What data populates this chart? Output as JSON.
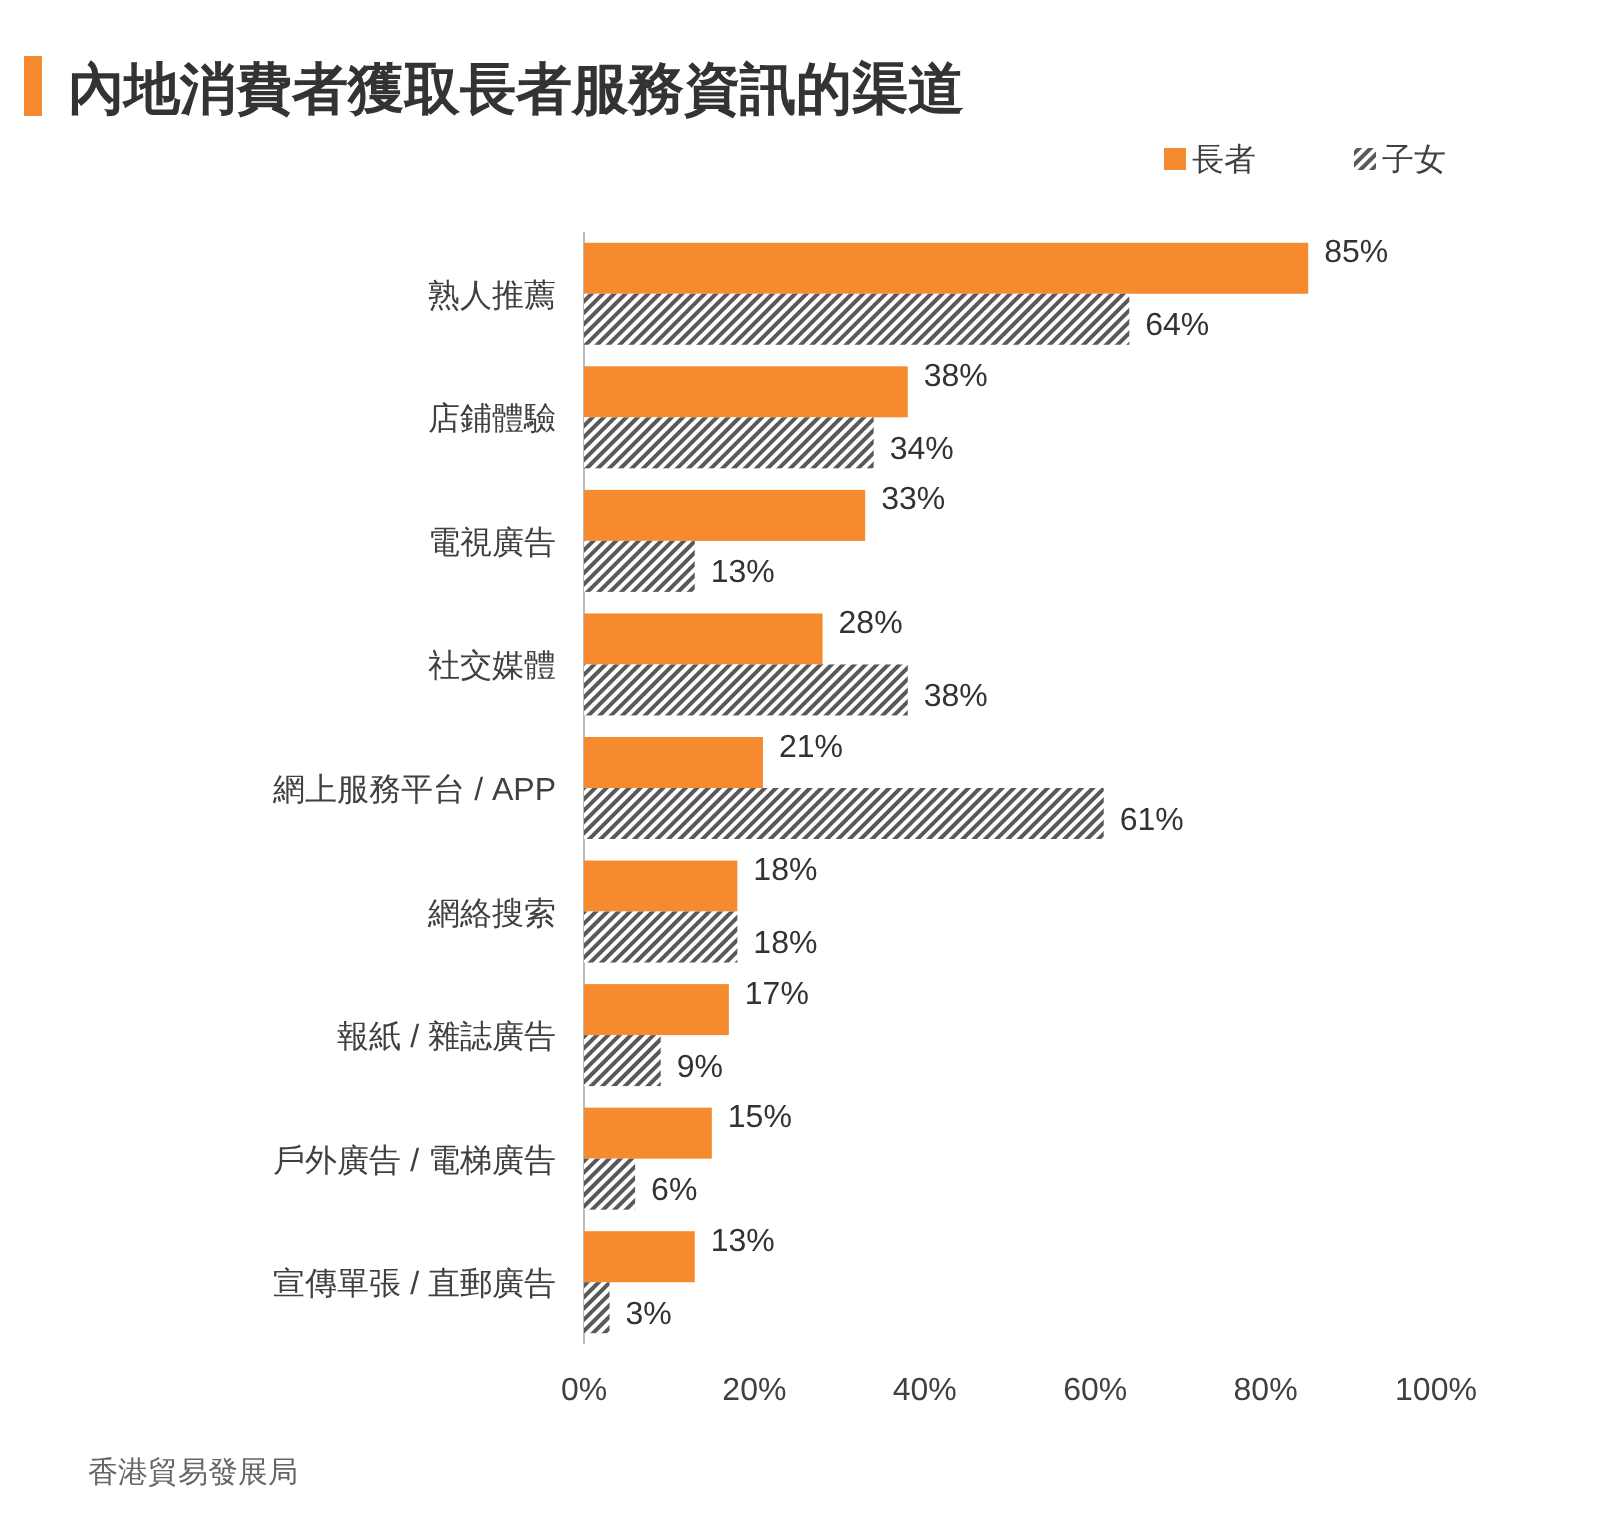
{
  "chart_data": {
    "type": "bar",
    "orientation": "horizontal",
    "title": "內地消費者獲取長者服務資訊的渠道",
    "categories": [
      "熟人推薦",
      "店鋪體驗",
      "電視廣告",
      "社交媒體",
      "網上服務平台 / APP",
      "網絡搜索",
      "報紙 / 雜誌廣告",
      "戶外廣告 / 電梯廣告",
      "宣傳單張 / 直郵廣告"
    ],
    "series": [
      {
        "name": "長者",
        "color": "#f58a2e",
        "values": [
          85,
          38,
          33,
          28,
          21,
          18,
          17,
          15,
          13
        ],
        "value_labels": [
          "85%",
          "38%",
          "33%",
          "28%",
          "21%",
          "18%",
          "17%",
          "15%",
          "13%"
        ]
      },
      {
        "name": "子女",
        "color": "#595959",
        "values": [
          64,
          34,
          13,
          38,
          61,
          18,
          9,
          6,
          3
        ],
        "value_labels": [
          "64%",
          "34%",
          "13%",
          "38%",
          "61%",
          "18%",
          "9%",
          "6%",
          "3%"
        ]
      }
    ],
    "xlim": [
      0,
      100
    ],
    "xticks": [
      {
        "value": 0,
        "label": "0%"
      },
      {
        "value": 20,
        "label": "20%"
      },
      {
        "value": 40,
        "label": "40%"
      },
      {
        "value": 60,
        "label": "60%"
      },
      {
        "value": 80,
        "label": "80%"
      },
      {
        "value": 100,
        "label": "100%"
      }
    ],
    "legend": "top right",
    "grid": false,
    "annotations": [
      "香港貿易發展局"
    ]
  }
}
